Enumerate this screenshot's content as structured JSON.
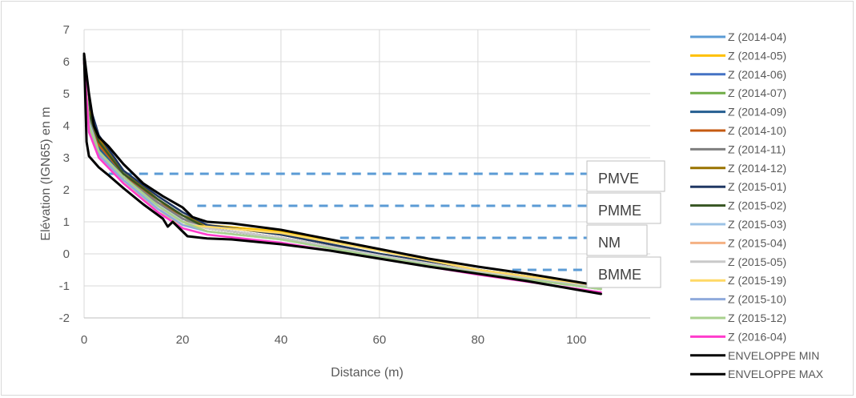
{
  "chart_data": {
    "type": "line",
    "xlabel": "Distance (m)",
    "ylabel": "Elévation (IGN65) en m",
    "xlim": [
      0,
      115
    ],
    "ylim": [
      -2,
      7
    ],
    "xticks": [
      "0",
      "20",
      "40",
      "60",
      "80",
      "100"
    ],
    "yticks": [
      "-2",
      "-1",
      "0",
      "1",
      "2",
      "3",
      "4",
      "5",
      "6",
      "7"
    ],
    "grid": true,
    "legend_position": "right",
    "reference_lines": [
      {
        "label": "PMVE",
        "y": 2.5,
        "x_start": 5,
        "x_end": 103,
        "color": "#5b9bd5"
      },
      {
        "label": "PMME",
        "y": 1.5,
        "x_start": 23,
        "x_end": 103,
        "color": "#5b9bd5"
      },
      {
        "label": "NM",
        "y": 0.5,
        "x_start": 52,
        "x_end": 103,
        "color": "#5b9bd5"
      },
      {
        "label": "BMME",
        "y": -0.5,
        "x_start": 87,
        "x_end": 103,
        "color": "#5b9bd5"
      }
    ],
    "series": [
      {
        "name": "Z (2014-04)",
        "color": "#5b9bd5",
        "x": [
          0,
          1,
          3,
          8,
          15,
          20,
          25,
          40,
          60,
          80,
          105
        ],
        "y": [
          6.0,
          4.2,
          3.3,
          2.5,
          1.6,
          1.1,
          0.8,
          0.5,
          -0.05,
          -0.55,
          -1.05
        ]
      },
      {
        "name": "Z (2014-05)",
        "color": "#ffc000",
        "x": [
          0,
          1,
          3,
          8,
          15,
          20,
          25,
          40,
          60,
          80,
          105
        ],
        "y": [
          6.0,
          4.0,
          3.2,
          2.4,
          1.5,
          1.0,
          0.9,
          0.7,
          0.1,
          -0.5,
          -1.0
        ]
      },
      {
        "name": "Z (2014-06)",
        "color": "#4472c4",
        "x": [
          0,
          1,
          3,
          8,
          15,
          20,
          25,
          40,
          60,
          80,
          105
        ],
        "y": [
          6.1,
          4.1,
          3.3,
          2.4,
          1.5,
          1.0,
          0.8,
          0.5,
          -0.05,
          -0.55,
          -1.05
        ]
      },
      {
        "name": "Z (2014-07)",
        "color": "#70ad47",
        "x": [
          0,
          1,
          3,
          8,
          15,
          20,
          25,
          40,
          60,
          80,
          105
        ],
        "y": [
          6.1,
          4.3,
          3.4,
          2.5,
          1.7,
          1.2,
          0.8,
          0.5,
          -0.05,
          -0.55,
          -1.05
        ]
      },
      {
        "name": "Z (2014-09)",
        "color": "#255e91",
        "x": [
          0,
          1,
          3,
          8,
          15,
          20,
          25,
          40,
          60,
          80,
          105
        ],
        "y": [
          6.1,
          4.0,
          3.3,
          2.4,
          1.6,
          1.1,
          0.8,
          0.5,
          -0.05,
          -0.55,
          -1.05
        ]
      },
      {
        "name": "Z (2014-10)",
        "color": "#c55a11",
        "x": [
          0,
          1,
          3,
          8,
          15,
          20,
          25,
          40,
          60,
          80,
          105
        ],
        "y": [
          6.0,
          4.5,
          3.4,
          2.5,
          1.6,
          1.2,
          0.8,
          0.5,
          -0.05,
          -0.55,
          -1.1
        ]
      },
      {
        "name": "Z (2014-11)",
        "color": "#7f7f7f",
        "x": [
          0,
          1,
          3,
          8,
          15,
          20,
          25,
          40,
          60,
          80,
          105
        ],
        "y": [
          6.0,
          4.2,
          3.2,
          2.4,
          1.6,
          1.1,
          0.8,
          0.5,
          -0.05,
          -0.55,
          -1.05
        ]
      },
      {
        "name": "Z (2014-12)",
        "color": "#997300",
        "x": [
          0,
          1,
          3,
          8,
          15,
          20,
          25,
          40,
          60,
          80,
          105
        ],
        "y": [
          6.0,
          4.6,
          3.6,
          2.6,
          1.7,
          1.2,
          0.9,
          0.6,
          0.0,
          -0.5,
          -1.05
        ]
      },
      {
        "name": "Z (2015-01)",
        "color": "#203864",
        "x": [
          0,
          1,
          3,
          8,
          15,
          20,
          25,
          40,
          60,
          80,
          105
        ],
        "y": [
          6.1,
          4.7,
          3.7,
          2.6,
          1.8,
          1.3,
          0.9,
          0.6,
          0.0,
          -0.5,
          -1.0
        ]
      },
      {
        "name": "Z (2015-02)",
        "color": "#375623",
        "x": [
          0,
          1,
          3,
          8,
          15,
          20,
          25,
          40,
          60,
          80,
          105
        ],
        "y": [
          6.1,
          4.4,
          3.5,
          2.5,
          1.7,
          1.2,
          0.8,
          0.5,
          -0.05,
          -0.55,
          -1.05
        ]
      },
      {
        "name": "Z (2015-03)",
        "color": "#9dc3e6",
        "x": [
          0,
          1,
          3,
          8,
          15,
          20,
          25,
          40,
          60,
          80,
          105
        ],
        "y": [
          6.0,
          4.1,
          3.2,
          2.3,
          1.5,
          1.0,
          0.8,
          0.5,
          -0.05,
          -0.55,
          -1.05
        ]
      },
      {
        "name": "Z (2015-04)",
        "color": "#f4b183",
        "x": [
          0,
          1,
          3,
          8,
          15,
          20,
          25,
          40,
          60,
          80,
          105
        ],
        "y": [
          6.0,
          4.0,
          3.1,
          2.3,
          1.4,
          1.0,
          0.8,
          0.5,
          -0.05,
          -0.55,
          -1.05
        ]
      },
      {
        "name": "Z (2015-05)",
        "color": "#c9c9c9",
        "x": [
          0,
          1,
          3,
          8,
          15,
          20,
          25,
          40,
          60,
          80,
          105
        ],
        "y": [
          6.0,
          3.9,
          3.1,
          2.2,
          1.4,
          1.0,
          0.8,
          0.5,
          -0.05,
          -0.55,
          -1.05
        ]
      },
      {
        "name": "Z (2015-19)",
        "color": "#ffd966",
        "x": [
          0,
          1,
          3,
          8,
          15,
          20,
          25,
          40,
          60,
          80,
          105
        ],
        "y": [
          6.0,
          4.0,
          3.2,
          2.3,
          1.3,
          0.9,
          0.85,
          0.65,
          0.1,
          -0.5,
          -1.0
        ]
      },
      {
        "name": "Z (2015-10)",
        "color": "#8faadc",
        "x": [
          0,
          1,
          3,
          8,
          15,
          20,
          25,
          40,
          60,
          80,
          105
        ],
        "y": [
          6.0,
          3.9,
          3.1,
          2.3,
          1.4,
          0.9,
          0.7,
          0.45,
          -0.1,
          -0.6,
          -1.1
        ]
      },
      {
        "name": "Z (2015-12)",
        "color": "#a9d18e",
        "x": [
          0,
          1,
          3,
          8,
          15,
          20,
          25,
          40,
          60,
          80,
          105
        ],
        "y": [
          6.0,
          4.0,
          3.2,
          2.4,
          1.5,
          1.0,
          0.7,
          0.45,
          -0.1,
          -0.6,
          -1.1
        ]
      },
      {
        "name": "Z (2016-04)",
        "color": "#ff3dcc",
        "x": [
          0,
          1,
          3,
          8,
          15,
          20,
          25,
          40,
          60,
          80,
          105
        ],
        "y": [
          6.0,
          3.8,
          3.0,
          2.2,
          1.3,
          0.8,
          0.6,
          0.35,
          -0.15,
          -0.65,
          -1.2
        ]
      },
      {
        "name": "ENVELOPPE MIN",
        "color": "#000000",
        "x": [
          0,
          0.5,
          1,
          3,
          5,
          8,
          12,
          16,
          17,
          18,
          20,
          21,
          25,
          30,
          40,
          50,
          60,
          70,
          80,
          90,
          105
        ],
        "y": [
          6.2,
          3.5,
          3.05,
          2.7,
          2.45,
          2.05,
          1.55,
          1.1,
          0.85,
          1.0,
          0.7,
          0.55,
          0.48,
          0.45,
          0.3,
          0.1,
          -0.15,
          -0.4,
          -0.62,
          -0.85,
          -1.25
        ]
      },
      {
        "name": "ENVELOPPE MAX",
        "color": "#000000",
        "x": [
          0,
          1,
          2,
          3,
          5,
          8,
          12,
          16,
          20,
          22,
          25,
          30,
          40,
          50,
          60,
          70,
          80,
          90,
          105
        ],
        "y": [
          6.25,
          5.0,
          4.0,
          3.65,
          3.35,
          2.8,
          2.2,
          1.8,
          1.45,
          1.15,
          1.0,
          0.95,
          0.75,
          0.45,
          0.15,
          -0.15,
          -0.4,
          -0.62,
          -1.0
        ]
      }
    ]
  }
}
